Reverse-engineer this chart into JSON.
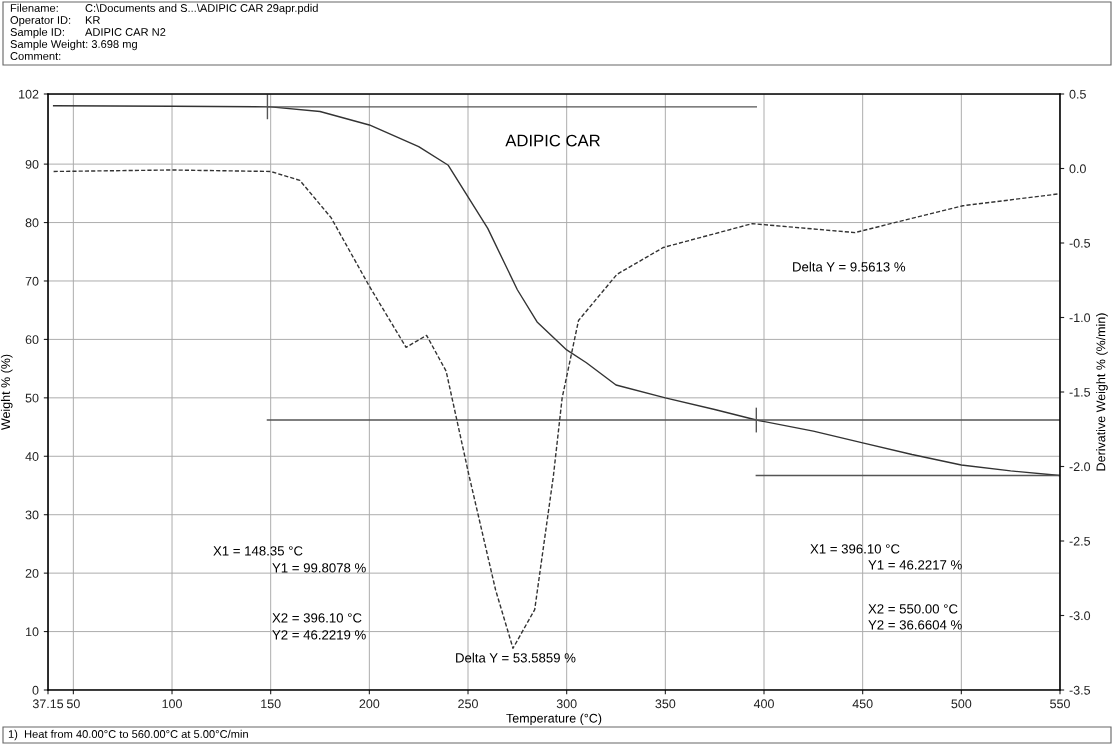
{
  "chart_data": {
    "type": "line",
    "title": "ADIPIC CAR",
    "xlabel": "Temperature (°C)",
    "ylabel": "Weight % (%)",
    "y2label": "Derivative Weight % (%/min)",
    "xlim": [
      37.15,
      550
    ],
    "xticks": [
      37.15,
      50,
      100,
      150,
      200,
      250,
      300,
      350,
      400,
      450,
      500,
      550
    ],
    "ylim": [
      0,
      102
    ],
    "yticks": [
      0,
      10,
      20,
      30,
      40,
      50,
      60,
      70,
      80,
      90,
      102
    ],
    "y2lim": [
      -3.5,
      0.5
    ],
    "y2ticks": [
      {
        "value": -3.5,
        "label": "-3.5"
      },
      {
        "value": -3,
        "label": "-3.0"
      },
      {
        "value": -2.5,
        "label": "-2.5"
      },
      {
        "value": -2,
        "label": "-2.0"
      },
      {
        "value": -1.5,
        "label": "-1.5"
      },
      {
        "value": -1,
        "label": "-1.0"
      },
      {
        "value": -0.5,
        "label": "-0.5"
      },
      {
        "value": 0,
        "label": "0.0"
      },
      {
        "value": 0.5,
        "label": "0.5"
      }
    ],
    "grid": true,
    "marker": "none",
    "series": [
      {
        "color": "#333333",
        "line_style": "solid",
        "x": [
          40,
          100,
          150,
          175,
          200,
          225,
          240,
          250,
          260,
          275,
          285,
          300,
          310,
          325,
          350,
          375,
          396.1,
          425,
          450,
          475,
          500,
          525,
          550
        ],
        "values": [
          100.0,
          99.9,
          99.8,
          99.0,
          96.7,
          93.0,
          89.8,
          84.4,
          79.0,
          68.5,
          63.0,
          58.2,
          56.0,
          52.2,
          50.0,
          48.0,
          46.2,
          44.3,
          42.3,
          40.3,
          38.5,
          37.5,
          36.7
        ]
      },
      {
        "color": "#333333",
        "line_style": "dashed",
        "axis": "y2",
        "x": [
          40,
          100,
          150,
          164.8,
          180.6,
          200,
          218.6,
          229,
          238.9,
          250.5,
          264,
          272.8,
          283.8,
          293.3,
          297.7,
          306,
          325.5,
          349,
          394,
          446,
          500.8,
          549.6
        ],
        "values": [
          -0.02,
          -0.01,
          -0.02,
          -0.08,
          -0.33,
          -0.79,
          -1.2,
          -1.12,
          -1.36,
          -2.06,
          -2.83,
          -3.22,
          -2.96,
          -2.06,
          -1.54,
          -1.02,
          -0.71,
          -0.53,
          -0.37,
          -0.43,
          -0.25,
          -0.17
        ]
      },
      {
        "color": "#555555",
        "line_style": "solid",
        "x": [
          148.35,
          396.1
        ],
        "values": [
          99.8,
          99.8
        ]
      },
      {
        "color": "#555555",
        "line_style": "solid",
        "x": [
          148.35,
          550
        ],
        "values": [
          46.2,
          46.2
        ]
      },
      {
        "color": "#555555",
        "line_style": "solid",
        "x": [
          396.1,
          550
        ],
        "values": [
          36.7,
          36.7
        ]
      },
      {
        "color": "#555555",
        "line_style": "solid",
        "x": [
          148.35,
          148.35
        ],
        "values": [
          97.8,
          101.8
        ]
      },
      {
        "color": "#555555",
        "line_style": "solid",
        "x": [
          396.1,
          396.1
        ],
        "values": [
          44.2,
          48.2
        ]
      }
    ],
    "annotations": [
      "Filename:",
      "C:\\Documents and S...\\ADIPIC CAR 29apr.pdid",
      "Operator ID:",
      "KR",
      "Sample ID:",
      "ADIPIC CAR N2",
      "Sample Weight: 3.698 mg",
      "Comment:",
      "X1 = 148.35 °C",
      "Y1 = 99.8078 %",
      "X2 = 396.10 °C",
      "Y2 = 46.2219 %",
      "Delta Y = 53.5859 %",
      "Delta Y = 9.5613 %",
      "X1 = 396.10 °C",
      "Y1 = 46.2217 %",
      "X2 = 550.00 °C",
      "Y2 = 36.6604 %",
      "1)  Heat from 40.00°C to 560.00°C at 5.00°C/min"
    ]
  }
}
